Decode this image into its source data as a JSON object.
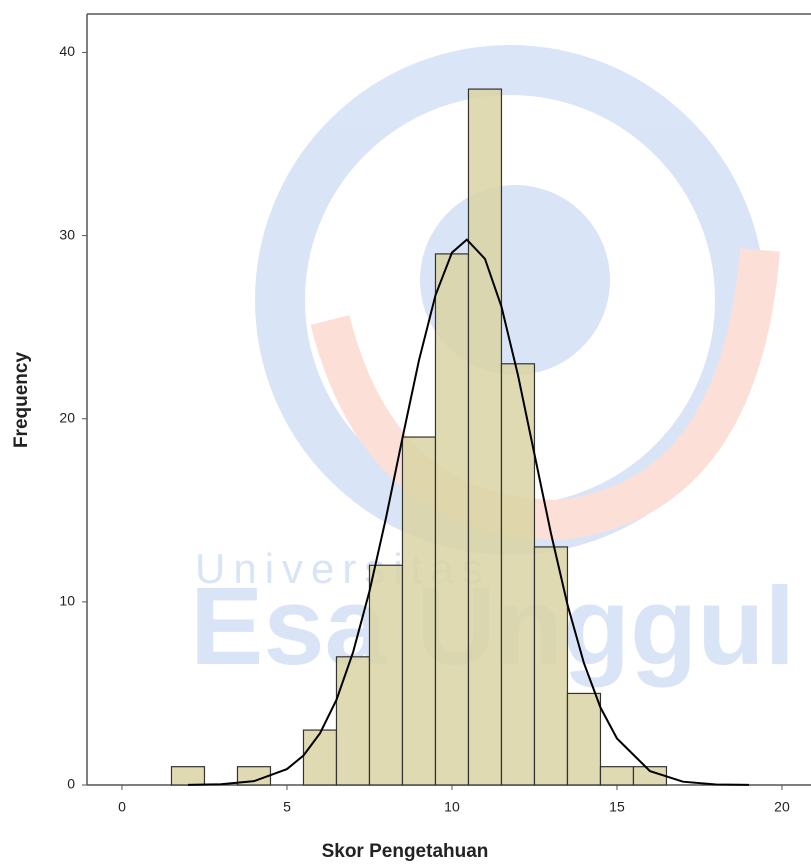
{
  "chart_data": {
    "type": "histogram",
    "x_label": "Skor Pengetahuan",
    "y_label": "Frequency",
    "bins": [
      1.5,
      2.5,
      3.5,
      4.5,
      5.5,
      6.5,
      7.5,
      8.5,
      9.5,
      10.5,
      11.5,
      12.5,
      13.5,
      14.5,
      15.5,
      16.5
    ],
    "values": [
      1,
      0,
      1,
      0,
      3,
      7,
      12,
      19,
      29,
      38,
      23,
      13,
      5,
      1,
      1
    ],
    "color": "#d9d4a3",
    "curve": {
      "color": "#000000",
      "x": [
        2,
        3,
        4,
        5,
        5.5,
        6,
        6.5,
        7,
        7.5,
        8,
        8.5,
        9,
        9.5,
        10,
        10.45,
        11,
        11.5,
        12,
        12.5,
        13,
        13.5,
        14,
        14.5,
        15,
        16,
        17,
        18,
        19
      ],
      "values": [
        0.006,
        0.04,
        0.21,
        0.87,
        1.61,
        2.82,
        4.65,
        7.23,
        10.58,
        14.58,
        18.95,
        23.19,
        26.74,
        29.07,
        29.78,
        28.73,
        26.12,
        22.38,
        18.06,
        13.74,
        9.85,
        6.65,
        4.23,
        2.54,
        0.76,
        0.18,
        0.03,
        0.005
      ]
    },
    "xlim": [
      -1.06,
      20.88
    ],
    "xticks": [
      0,
      5,
      10,
      15,
      20
    ],
    "ylim": [
      0,
      42.1
    ],
    "yticks": [
      0,
      10,
      20,
      30,
      40
    ],
    "watermark": {
      "line1": "Universitas",
      "line2": "Esa Unggul"
    }
  }
}
